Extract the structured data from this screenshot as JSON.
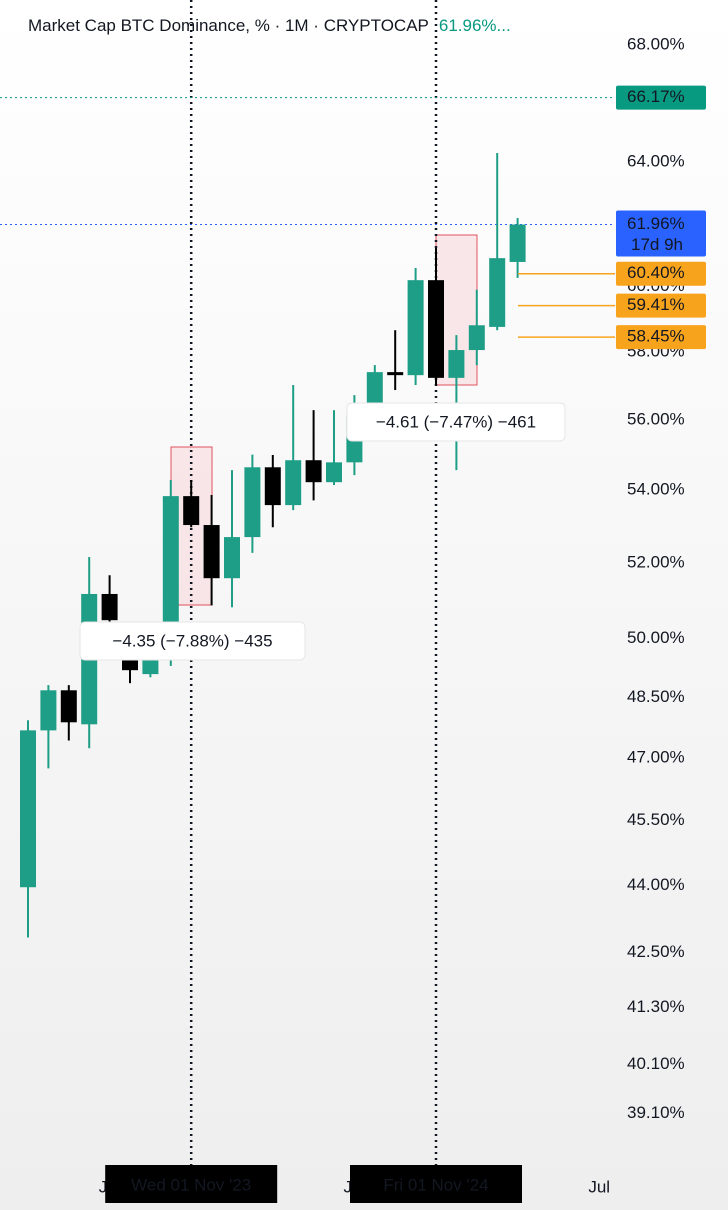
{
  "chart_data": {
    "type": "candlestick",
    "title": "Market Cap BTC Dominance, % · 1M · CRYPTOCAP",
    "header_value": "61.96%...",
    "log_scale": true,
    "ylim": [
      38.07,
      69.6
    ],
    "yticks": [
      {
        "value": 68,
        "label": "68.00%"
      },
      {
        "value": 64,
        "label": "64.00%"
      },
      {
        "value": 60,
        "label": "60.00%"
      },
      {
        "value": 58,
        "label": "58.00%"
      },
      {
        "value": 56,
        "label": "56.00%"
      },
      {
        "value": 54,
        "label": "54.00%"
      },
      {
        "value": 52,
        "label": "52.00%"
      },
      {
        "value": 50,
        "label": "50.00%"
      },
      {
        "value": 48.5,
        "label": "48.50%"
      },
      {
        "value": 47,
        "label": "47.00%"
      },
      {
        "value": 45.5,
        "label": "45.50%"
      },
      {
        "value": 44,
        "label": "44.00%"
      },
      {
        "value": 42.5,
        "label": "42.50%"
      },
      {
        "value": 41.3,
        "label": "41.30%"
      },
      {
        "value": 40.1,
        "label": "40.10%"
      },
      {
        "value": 39.1,
        "label": "39.10%"
      }
    ],
    "categories": [
      null,
      null,
      null,
      null,
      "Jul",
      null,
      null,
      null,
      "Wed 01 Nov '23",
      null,
      null,
      null,
      null,
      null,
      null,
      null,
      "Jul",
      null,
      null,
      null,
      "Fri 01 Nov '24",
      null,
      null,
      null,
      null,
      null,
      null,
      null,
      "Jul"
    ],
    "crosshairs": [
      8,
      20
    ],
    "up_color": "#1e9e86",
    "down_color": "#000000",
    "open": [
      43.96,
      47.68,
      48.68,
      47.83,
      51.17,
      49.52,
      49.09,
      49.44,
      53.83,
      53.03,
      51.59,
      52.7,
      54.64,
      53.58,
      54.84,
      54.22,
      54.78,
      56.14,
      57.4,
      57.31,
      60.2,
      57.23,
      58.06,
      58.76,
      60.77,
      null,
      null,
      null,
      null
    ],
    "high": [
      47.93,
      48.81,
      48.81,
      52.16,
      51.67,
      50.09,
      49.83,
      54.28,
      54.28,
      53.86,
      54.56,
      55.0,
      54.99,
      57.02,
      56.28,
      56.28,
      56.72,
      57.61,
      58.66,
      60.58,
      61.21,
      58.51,
      59.9,
      64.3,
      62.17,
      null,
      null,
      null,
      null
    ],
    "low": [
      42.83,
      46.75,
      47.43,
      47.24,
      49.7,
      48.86,
      49.01,
      49.3,
      52.97,
      50.87,
      50.82,
      52.27,
      52.97,
      53.44,
      53.71,
      54.14,
      54.42,
      55.99,
      56.87,
      57.02,
      57.02,
      54.56,
      57.61,
      58.66,
      60.27,
      null,
      null,
      null,
      null
    ],
    "close": [
      47.68,
      48.68,
      47.88,
      51.17,
      50.48,
      49.19,
      49.44,
      53.83,
      53.03,
      51.59,
      52.7,
      54.64,
      53.58,
      54.84,
      54.22,
      54.78,
      56.14,
      57.4,
      57.31,
      60.2,
      57.23,
      58.06,
      58.81,
      60.89,
      61.96,
      null,
      null,
      null,
      null
    ],
    "alert_line": {
      "value": 66.17,
      "label": "66.17%",
      "color": "#089981"
    },
    "last_price": {
      "value": 61.96,
      "label": "61.96%",
      "countdown": "17d 9h",
      "color": "#2962ff"
    },
    "price_lines": [
      {
        "value": 60.4,
        "label": "60.40%",
        "color": "#f7a31c"
      },
      {
        "value": 59.41,
        "label": "59.41%",
        "color": "#f7a31c"
      },
      {
        "value": 58.45,
        "label": "58.45%",
        "color": "#f7a31c"
      }
    ],
    "annotations": [
      "−4.35 (−7.88%) −435",
      "−4.61 (−7.47%) −461"
    ]
  }
}
